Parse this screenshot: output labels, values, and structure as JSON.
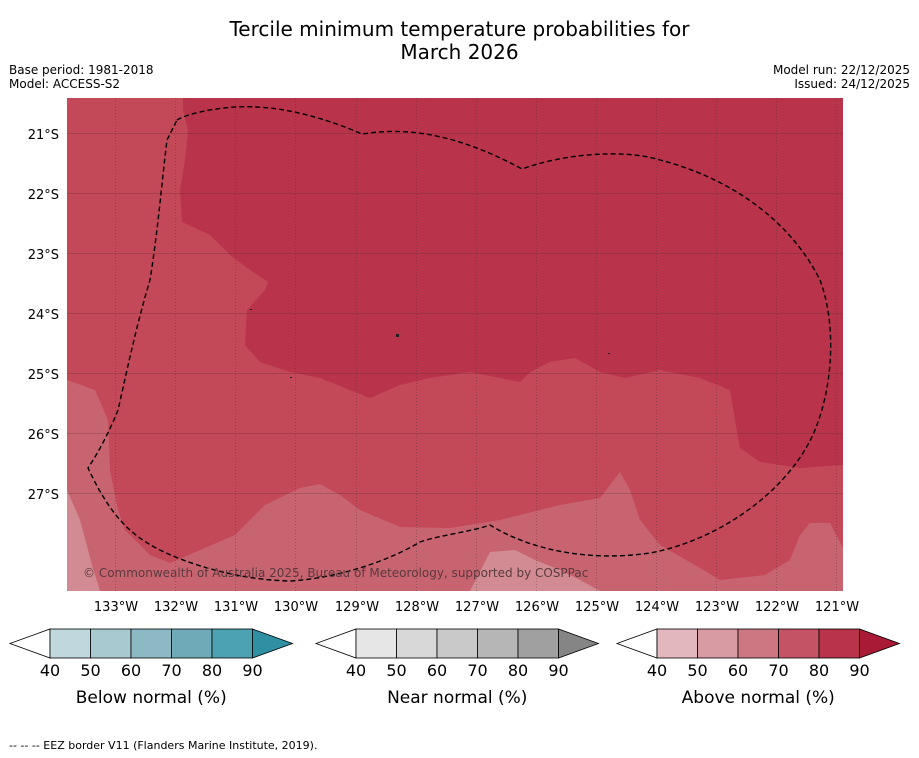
{
  "title_line1": "Tercile minimum temperature probabilities for",
  "title_line2": "March 2026",
  "base_period": "Base period: 1981-2018",
  "model": "Model: ACCESS-S2",
  "model_run": "Model run: 22/12/2025",
  "issued": "Issued: 24/12/2025",
  "copyright": "© Commonwealth of Australia 2025, Bureau of Meteorology, supported by COSPPac",
  "lat_labels": [
    "21°S",
    "22°S",
    "23°S",
    "24°S",
    "25°S",
    "26°S",
    "27°S"
  ],
  "lon_labels": [
    "133°W",
    "132°W",
    "131°W",
    "130°W",
    "129°W",
    "128°W",
    "127°W",
    "126°W",
    "125°W",
    "124°W",
    "123°W",
    "122°W",
    "121°W"
  ],
  "colorbars": [
    {
      "label": "Below normal (%)",
      "ticks": [
        "40",
        "50",
        "60",
        "70",
        "80",
        "90"
      ],
      "colors": [
        "#c0d7dd",
        "#a8c9d0",
        "#8db9c4",
        "#6eaab8",
        "#4ca2b0",
        "#2e90a2"
      ]
    },
    {
      "label": "Near normal (%)",
      "ticks": [
        "40",
        "50",
        "60",
        "70",
        "80",
        "90"
      ],
      "colors": [
        "#e6e6e6",
        "#d8d8d8",
        "#c9c9c9",
        "#b6b6b6",
        "#a0a0a0",
        "#858585"
      ]
    },
    {
      "label": "Above normal (%)",
      "ticks": [
        "40",
        "50",
        "60",
        "70",
        "80",
        "90"
      ],
      "colors": [
        "#e2b8be",
        "#d89aa3",
        "#cc7782",
        "#c45465",
        "#b9344a",
        "#a81a35"
      ]
    }
  ],
  "legend_text": "--  --  -- EEZ border V11 (Flanders Marine Institute, 2019)."
}
